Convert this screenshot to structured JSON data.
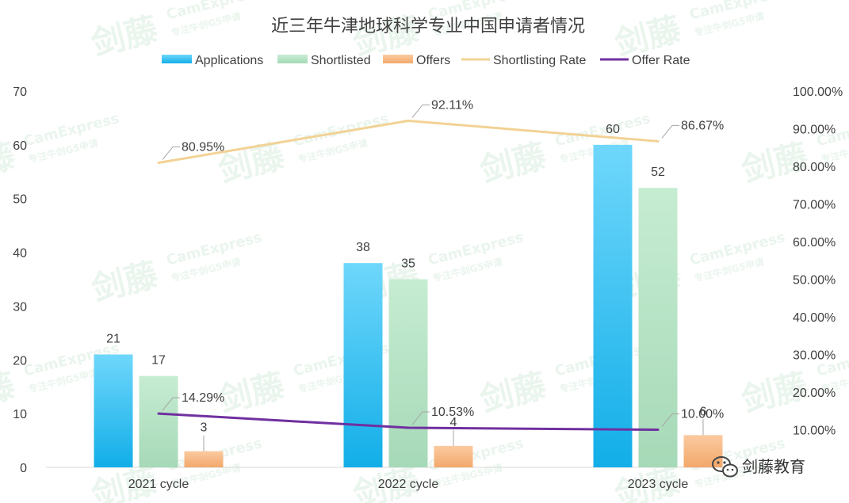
{
  "chart_data": {
    "type": "bar",
    "title": "近三年牛津地球科学专业中国申请者情况",
    "categories": [
      "2021 cycle",
      "2022 cycle",
      "2023 cycle"
    ],
    "series": [
      {
        "name": "Applications",
        "kind": "bar",
        "axis": "left",
        "values": [
          21,
          38,
          60
        ],
        "color": "#38c3f0"
      },
      {
        "name": "Shortlisted",
        "kind": "bar",
        "axis": "left",
        "values": [
          17,
          35,
          52
        ],
        "color": "#b4e2c3"
      },
      {
        "name": "Offers",
        "kind": "bar",
        "axis": "left",
        "values": [
          3,
          4,
          6
        ],
        "color": "#f7b98a"
      },
      {
        "name": "Shortlisting Rate",
        "kind": "line",
        "axis": "right",
        "values": [
          80.95,
          92.11,
          86.67
        ],
        "labels": [
          "80.95%",
          "92.11%",
          "86.67%"
        ],
        "color": "#f2d295"
      },
      {
        "name": "Offer Rate",
        "kind": "line",
        "axis": "right",
        "values": [
          14.29,
          10.53,
          10.0
        ],
        "labels": [
          "14.29%",
          "10.53%",
          "10.00%"
        ],
        "color": "#7030a0"
      }
    ],
    "left_axis": {
      "ylim": [
        0,
        70
      ],
      "ticks": [
        "0",
        "10",
        "20",
        "30",
        "40",
        "50",
        "60",
        "70"
      ]
    },
    "right_axis": {
      "ylim": [
        0,
        100
      ],
      "ticks": [
        "",
        "10.00%",
        "20.00%",
        "30.00%",
        "40.00%",
        "50.00%",
        "60.00%",
        "70.00%",
        "80.00%",
        "90.00%",
        "100.00%"
      ]
    },
    "legend_position": "top",
    "grid": false
  },
  "watermark": {
    "brand": "剑藤",
    "en": "CamExpress",
    "tagline": "专注牛剑G5申请"
  },
  "wechat_badge": {
    "icon": "wechat-icon",
    "text": "剑藤教育"
  }
}
